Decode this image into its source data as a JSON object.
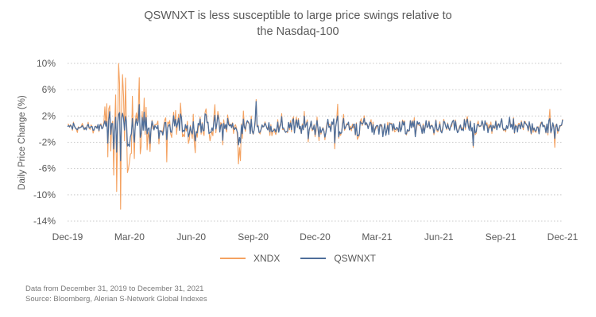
{
  "chart_data": {
    "type": "line",
    "title": "QSWNXT is less susceptible to large price swings relative to the Nasdaq-100",
    "title_lines": [
      "QSWNXT is less susceptible to large price swings relative to",
      "the Nasdaq-100"
    ],
    "xlabel": "",
    "ylabel": "Daily Price Change (%)",
    "ylim": [
      -14,
      10
    ],
    "yticks": [
      10,
      6,
      2,
      -2,
      -6,
      -10,
      -14
    ],
    "ytick_labels": [
      "10%",
      "6%",
      "2%",
      "-2%",
      "-6%",
      "-10%",
      "-14%"
    ],
    "xlim": [
      "2019-12-31",
      "2021-12-31"
    ],
    "xtick_labels": [
      "Dec-19",
      "Mar-20",
      "Jun-20",
      "Sep-20",
      "Dec-20",
      "Mar-21",
      "Jun-21",
      "Sep-21",
      "Dec-21"
    ],
    "grid": "horizontal dotted",
    "legend_position": "bottom-center",
    "series": [
      {
        "name": "XNDX",
        "color": "#F4A261",
        "approx_profile": [
          {
            "period": "Jan-20 to mid-Feb-20",
            "range": [
              -2,
              2
            ]
          },
          {
            "period": "late-Feb-20 to Apr-20",
            "range": [
              -12.2,
              10
            ],
            "max": 10,
            "min": -12.2
          },
          {
            "period": "Apr-20 to Sep-20",
            "range": [
              -5,
              4
            ]
          },
          {
            "period": "Sep-20",
            "range": [
              -5.3,
              4.5
            ]
          },
          {
            "period": "Oct-20 to Feb-21",
            "range": [
              -3.2,
              3
            ]
          },
          {
            "period": "Feb-21 to Mar-21",
            "range": [
              -3,
              3.5
            ]
          },
          {
            "period": "Apr-21 to Dec-21",
            "range": [
              -2.8,
              3
            ]
          }
        ]
      },
      {
        "name": "QSWNXT",
        "color": "#4E6E9A",
        "approx_profile": [
          {
            "period": "Jan-20 to mid-Feb-20",
            "range": [
              -1.2,
              1.2
            ]
          },
          {
            "period": "late-Feb-20 to Apr-20",
            "range": [
              -5,
              2.5
            ]
          },
          {
            "period": "Apr-20 to Sep-20",
            "range": [
              -2.5,
              2
            ]
          },
          {
            "period": "Sep-20",
            "range": [
              -2.5,
              4.2
            ]
          },
          {
            "period": "Oct-20 to Dec-21",
            "range": [
              -2.5,
              2.2
            ]
          }
        ]
      }
    ]
  },
  "legend": [
    {
      "label": "XNDX",
      "color": "#F4A261"
    },
    {
      "label": "QSWNXT",
      "color": "#4E6E9A"
    }
  ],
  "footnotes": [
    "Data from December 31, 2019 to December 31, 2021",
    "Source: Bloomberg, Alerian S-Network Global Indexes"
  ]
}
